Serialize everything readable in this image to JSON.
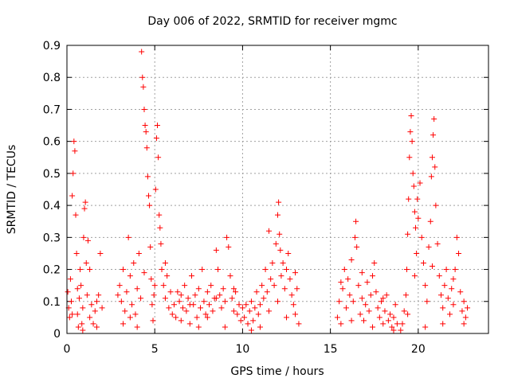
{
  "chart_data": {
    "type": "scatter",
    "title": "Day 006 of 2022, SRMTID for receiver mgmc",
    "xlabel": "GPS time / hours",
    "ylabel": "SRMTID / TECUs",
    "xlim": [
      0,
      24
    ],
    "ylim": [
      0,
      0.9
    ],
    "xticks": [
      0,
      5,
      10,
      15,
      20
    ],
    "xtick_labels": [
      "0",
      "5",
      "10",
      "15",
      "20"
    ],
    "yticks": [
      0,
      0.1,
      0.2,
      0.3,
      0.4,
      0.5,
      0.6,
      0.7,
      0.8,
      0.9
    ],
    "ytick_labels": [
      "0",
      "0.1",
      "0.2",
      "0.3",
      "0.4",
      "0.5",
      "0.6",
      "0.7",
      "0.8",
      "0.9"
    ],
    "grid": true,
    "marker": "+",
    "color": "#ff0000",
    "series": [
      {
        "name": "mgmc",
        "points": [
          [
            0.05,
            0.13
          ],
          [
            0.1,
            0.08
          ],
          [
            0.15,
            0.05
          ],
          [
            0.2,
            0.17
          ],
          [
            0.25,
            0.1
          ],
          [
            0.3,
            0.43
          ],
          [
            0.35,
            0.5
          ],
          [
            0.4,
            0.6
          ],
          [
            0.45,
            0.57
          ],
          [
            0.5,
            0.37
          ],
          [
            0.55,
            0.25
          ],
          [
            0.6,
            0.06
          ],
          [
            0.65,
            0.02
          ],
          [
            0.7,
            0.11
          ],
          [
            0.75,
            0.2
          ],
          [
            0.8,
            0.15
          ],
          [
            0.85,
            0.03
          ],
          [
            0.9,
            0.08
          ],
          [
            0.95,
            0.3
          ],
          [
            1.0,
            0.39
          ],
          [
            1.05,
            0.41
          ],
          [
            1.1,
            0.22
          ],
          [
            1.15,
            0.12
          ],
          [
            1.2,
            0.29
          ],
          [
            1.3,
            0.2
          ],
          [
            1.4,
            0.09
          ],
          [
            1.5,
            0.03
          ],
          [
            1.6,
            0.07
          ],
          [
            1.7,
            0.02
          ],
          [
            1.8,
            0.12
          ],
          [
            1.9,
            0.25
          ],
          [
            2.0,
            0.08
          ],
          [
            0.3,
            0.06
          ],
          [
            0.6,
            0.14
          ],
          [
            0.9,
            0.01
          ],
          [
            1.3,
            0.05
          ],
          [
            1.7,
            0.1
          ],
          [
            2.9,
            0.12
          ],
          [
            3.0,
            0.15
          ],
          [
            3.1,
            0.1
          ],
          [
            3.2,
            0.2
          ],
          [
            3.3,
            0.07
          ],
          [
            3.4,
            0.13
          ],
          [
            3.5,
            0.3
          ],
          [
            3.6,
            0.18
          ],
          [
            3.7,
            0.09
          ],
          [
            3.8,
            0.22
          ],
          [
            3.9,
            0.06
          ],
          [
            4.0,
            0.14
          ],
          [
            4.1,
            0.25
          ],
          [
            4.2,
            0.11
          ],
          [
            4.25,
            0.88
          ],
          [
            4.3,
            0.8
          ],
          [
            4.35,
            0.77
          ],
          [
            4.4,
            0.7
          ],
          [
            4.45,
            0.65
          ],
          [
            4.5,
            0.63
          ],
          [
            4.55,
            0.58
          ],
          [
            4.6,
            0.49
          ],
          [
            4.65,
            0.43
          ],
          [
            4.7,
            0.4
          ],
          [
            4.75,
            0.27
          ],
          [
            4.8,
            0.17
          ],
          [
            4.85,
            0.09
          ],
          [
            4.9,
            0.04
          ],
          [
            4.95,
            0.12
          ],
          [
            5.0,
            0.15
          ],
          [
            5.05,
            0.45
          ],
          [
            5.1,
            0.61
          ],
          [
            5.15,
            0.65
          ],
          [
            5.2,
            0.55
          ],
          [
            5.25,
            0.37
          ],
          [
            5.3,
            0.33
          ],
          [
            5.35,
            0.28
          ],
          [
            5.4,
            0.2
          ],
          [
            5.5,
            0.15
          ],
          [
            5.6,
            0.11
          ],
          [
            5.7,
            0.18
          ],
          [
            5.8,
            0.08
          ],
          [
            5.9,
            0.13
          ],
          [
            6.0,
            0.06
          ],
          [
            3.2,
            0.03
          ],
          [
            3.6,
            0.05
          ],
          [
            4.0,
            0.02
          ],
          [
            4.4,
            0.19
          ],
          [
            5.6,
            0.22
          ],
          [
            6.1,
            0.09
          ],
          [
            6.2,
            0.05
          ],
          [
            6.3,
            0.13
          ],
          [
            6.4,
            0.1
          ],
          [
            6.5,
            0.04
          ],
          [
            6.6,
            0.08
          ],
          [
            6.7,
            0.15
          ],
          [
            6.8,
            0.07
          ],
          [
            6.9,
            0.11
          ],
          [
            7.0,
            0.03
          ],
          [
            7.1,
            0.18
          ],
          [
            7.2,
            0.09
          ],
          [
            7.3,
            0.12
          ],
          [
            7.4,
            0.05
          ],
          [
            7.5,
            0.14
          ],
          [
            7.6,
            0.08
          ],
          [
            7.7,
            0.2
          ],
          [
            7.8,
            0.1
          ],
          [
            7.9,
            0.06
          ],
          [
            8.0,
            0.13
          ],
          [
            8.1,
            0.09
          ],
          [
            8.2,
            0.15
          ],
          [
            8.3,
            0.07
          ],
          [
            8.4,
            0.11
          ],
          [
            8.5,
            0.26
          ],
          [
            8.6,
            0.2
          ],
          [
            8.7,
            0.12
          ],
          [
            8.8,
            0.08
          ],
          [
            8.9,
            0.14
          ],
          [
            9.0,
            0.1
          ],
          [
            9.1,
            0.3
          ],
          [
            9.2,
            0.27
          ],
          [
            9.3,
            0.18
          ],
          [
            9.4,
            0.11
          ],
          [
            9.5,
            0.07
          ],
          [
            9.6,
            0.13
          ],
          [
            9.7,
            0.06
          ],
          [
            9.8,
            0.09
          ],
          [
            9.9,
            0.04
          ],
          [
            10.0,
            0.08
          ],
          [
            6.5,
            0.12
          ],
          [
            7.0,
            0.09
          ],
          [
            7.5,
            0.02
          ],
          [
            8.0,
            0.05
          ],
          [
            8.5,
            0.11
          ],
          [
            9.0,
            0.02
          ],
          [
            9.5,
            0.14
          ],
          [
            10.1,
            0.05
          ],
          [
            10.2,
            0.09
          ],
          [
            10.3,
            0.03
          ],
          [
            10.4,
            0.07
          ],
          [
            10.5,
            0.1
          ],
          [
            10.6,
            0.04
          ],
          [
            10.7,
            0.08
          ],
          [
            10.8,
            0.13
          ],
          [
            10.9,
            0.06
          ],
          [
            11.0,
            0.09
          ],
          [
            11.1,
            0.15
          ],
          [
            11.2,
            0.11
          ],
          [
            11.3,
            0.2
          ],
          [
            11.4,
            0.13
          ],
          [
            11.5,
            0.32
          ],
          [
            11.6,
            0.17
          ],
          [
            11.7,
            0.22
          ],
          [
            11.8,
            0.15
          ],
          [
            11.9,
            0.28
          ],
          [
            12.0,
            0.37
          ],
          [
            12.05,
            0.41
          ],
          [
            12.1,
            0.31
          ],
          [
            12.15,
            0.26
          ],
          [
            12.2,
            0.18
          ],
          [
            12.3,
            0.22
          ],
          [
            12.4,
            0.14
          ],
          [
            12.5,
            0.2
          ],
          [
            12.6,
            0.25
          ],
          [
            12.7,
            0.17
          ],
          [
            12.8,
            0.12
          ],
          [
            12.9,
            0.09
          ],
          [
            13.0,
            0.06
          ],
          [
            13.1,
            0.14
          ],
          [
            13.2,
            0.03
          ],
          [
            10.5,
            0.01
          ],
          [
            11.0,
            0.02
          ],
          [
            11.5,
            0.07
          ],
          [
            12.0,
            0.1
          ],
          [
            12.5,
            0.05
          ],
          [
            13.0,
            0.19
          ],
          [
            15.4,
            0.05
          ],
          [
            15.5,
            0.1
          ],
          [
            15.6,
            0.03
          ],
          [
            15.7,
            0.14
          ],
          [
            15.8,
            0.2
          ],
          [
            15.9,
            0.08
          ],
          [
            16.0,
            0.17
          ],
          [
            16.1,
            0.12
          ],
          [
            16.2,
            0.23
          ],
          [
            16.3,
            0.1
          ],
          [
            16.4,
            0.3
          ],
          [
            16.45,
            0.35
          ],
          [
            16.5,
            0.27
          ],
          [
            16.6,
            0.15
          ],
          [
            16.7,
            0.06
          ],
          [
            16.8,
            0.11
          ],
          [
            16.9,
            0.04
          ],
          [
            17.0,
            0.09
          ],
          [
            17.1,
            0.16
          ],
          [
            17.2,
            0.07
          ],
          [
            17.3,
            0.12
          ],
          [
            17.4,
            0.18
          ],
          [
            17.5,
            0.22
          ],
          [
            17.6,
            0.13
          ],
          [
            17.7,
            0.08
          ],
          [
            17.8,
            0.05
          ],
          [
            17.9,
            0.1
          ],
          [
            18.0,
            0.03
          ],
          [
            18.1,
            0.07
          ],
          [
            18.2,
            0.12
          ],
          [
            18.3,
            0.04
          ],
          [
            18.4,
            0.06
          ],
          [
            18.5,
            0.02
          ],
          [
            18.6,
            0.05
          ],
          [
            18.7,
            0.09
          ],
          [
            18.8,
            0.03
          ],
          [
            19.0,
            0.01
          ],
          [
            15.6,
            0.16
          ],
          [
            16.2,
            0.04
          ],
          [
            16.8,
            0.19
          ],
          [
            17.4,
            0.02
          ],
          [
            18.0,
            0.11
          ],
          [
            18.6,
            0.01
          ],
          [
            19.1,
            0.03
          ],
          [
            19.2,
            0.07
          ],
          [
            19.3,
            0.12
          ],
          [
            19.35,
            0.2
          ],
          [
            19.4,
            0.31
          ],
          [
            19.45,
            0.42
          ],
          [
            19.5,
            0.55
          ],
          [
            19.55,
            0.63
          ],
          [
            19.6,
            0.68
          ],
          [
            19.65,
            0.6
          ],
          [
            19.7,
            0.5
          ],
          [
            19.75,
            0.46
          ],
          [
            19.8,
            0.38
          ],
          [
            19.85,
            0.33
          ],
          [
            19.9,
            0.25
          ],
          [
            19.95,
            0.42
          ],
          [
            20.0,
            0.36
          ],
          [
            20.1,
            0.47
          ],
          [
            20.2,
            0.3
          ],
          [
            20.3,
            0.22
          ],
          [
            20.4,
            0.15
          ],
          [
            20.5,
            0.1
          ],
          [
            20.6,
            0.27
          ],
          [
            20.7,
            0.35
          ],
          [
            20.75,
            0.49
          ],
          [
            20.8,
            0.55
          ],
          [
            20.85,
            0.62
          ],
          [
            20.9,
            0.67
          ],
          [
            20.95,
            0.52
          ],
          [
            21.0,
            0.4
          ],
          [
            21.1,
            0.28
          ],
          [
            21.2,
            0.18
          ],
          [
            21.3,
            0.12
          ],
          [
            21.4,
            0.08
          ],
          [
            21.5,
            0.15
          ],
          [
            21.6,
            0.2
          ],
          [
            21.7,
            0.11
          ],
          [
            21.8,
            0.06
          ],
          [
            21.9,
            0.14
          ],
          [
            22.0,
            0.09
          ],
          [
            22.1,
            0.2
          ],
          [
            22.2,
            0.3
          ],
          [
            22.3,
            0.25
          ],
          [
            22.4,
            0.13
          ],
          [
            22.5,
            0.07
          ],
          [
            22.6,
            0.1
          ],
          [
            22.7,
            0.05
          ],
          [
            22.8,
            0.08
          ],
          [
            19.4,
            0.06
          ],
          [
            19.8,
            0.18
          ],
          [
            20.4,
            0.02
          ],
          [
            20.8,
            0.21
          ],
          [
            21.4,
            0.03
          ],
          [
            22.0,
            0.17
          ],
          [
            22.6,
            0.03
          ]
        ]
      }
    ]
  }
}
